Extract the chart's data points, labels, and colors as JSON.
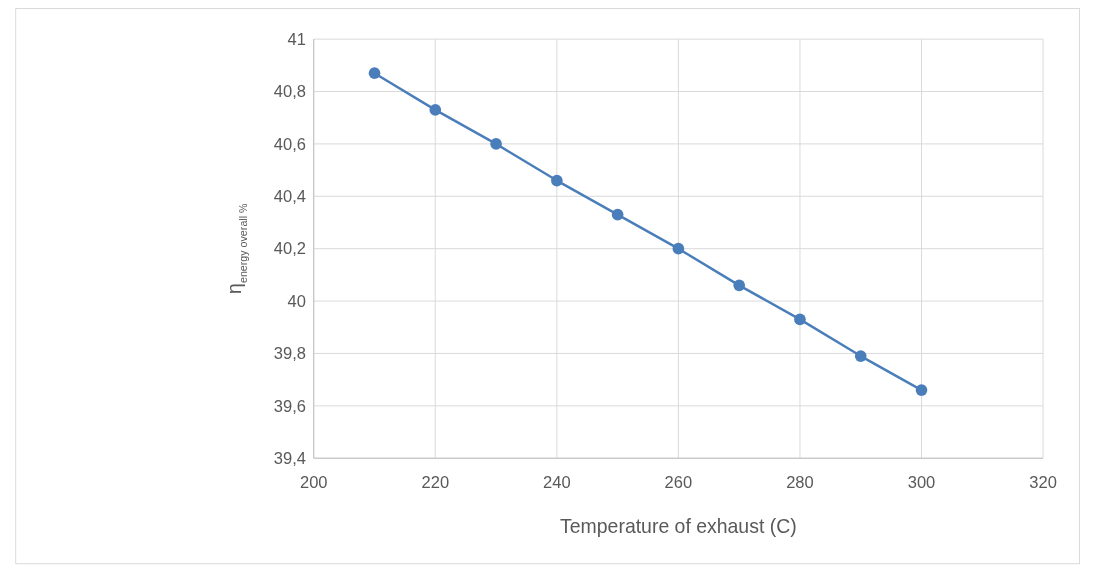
{
  "chart_data": {
    "type": "line",
    "xlabel": "Temperature of exhaust (C)",
    "ylabel": "η$_{energy overall %}$",
    "x": [
      210,
      220,
      230,
      240,
      250,
      260,
      270,
      280,
      290,
      300
    ],
    "series": [
      {
        "color": "#4a7ebb",
        "values": [
          40.87,
          40.73,
          40.6,
          40.46,
          40.33,
          40.2,
          40.06,
          39.93,
          39.79,
          39.66
        ]
      }
    ],
    "xlim": [
      200,
      320
    ],
    "xticks": [
      200,
      220,
      240,
      260,
      280,
      300,
      320
    ],
    "ylim": [
      39.4,
      41
    ],
    "yticks": [
      {
        "value": 39.4,
        "label": "39,4"
      },
      {
        "value": 39.6,
        "label": "39,6"
      },
      {
        "value": 39.8,
        "label": "39,8"
      },
      40,
      {
        "value": 40.2,
        "label": "40,2"
      },
      {
        "value": 40.4,
        "label": "40,4"
      },
      {
        "value": 40.6,
        "label": "40,6"
      },
      {
        "value": 40.8,
        "label": "40,8"
      },
      41
    ],
    "grid": true,
    "marker": "circle",
    "line_style": "solid"
  }
}
